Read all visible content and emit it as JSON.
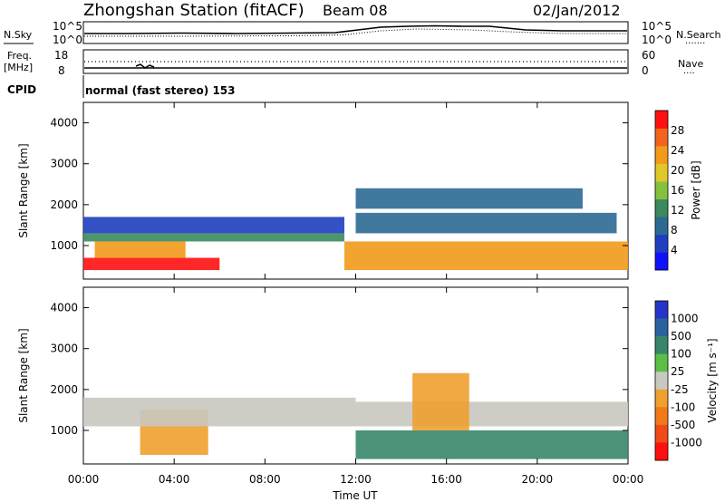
{
  "header": {
    "station": "Zhongshan Station (fitACF)",
    "beam": "Beam 08",
    "date": "02/Jan/2012"
  },
  "panels": {
    "noise": {
      "left_label": "N.Sky",
      "left_top": "10^5",
      "left_bottom": "10^0",
      "right_top": "10^5",
      "right_bottom": "10^0",
      "right_label": "N.Search",
      "right_dots": "·······"
    },
    "freq": {
      "label_line1": "Freq.",
      "label_line2": "[MHz]",
      "left_top": "18",
      "left_bottom": "8",
      "right_top": "60",
      "right_bottom": "0",
      "right_label": "Nave",
      "right_dots": "····"
    },
    "cpid": {
      "label": "CPID",
      "text": "normal (fast stereo) 153"
    }
  },
  "chart_data": [
    {
      "type": "heatmap",
      "panel": "power",
      "ylabel": "Slant Range [km]",
      "yticks": [
        "1000",
        "2000",
        "3000",
        "4000"
      ],
      "ylim": [
        180,
        4500
      ],
      "xlim": [
        0,
        24
      ],
      "colorbar": {
        "label": "Power [dB]",
        "ticks": [
          "4",
          "8",
          "12",
          "16",
          "20",
          "24",
          "28"
        ],
        "range": [
          0,
          32
        ],
        "colors": [
          "#1010ff",
          "#1e3fc0",
          "#2c6a93",
          "#3a8a5e",
          "#86c13e",
          "#e0c82a",
          "#f29a1a",
          "#f0641c",
          "#ff1010"
        ]
      },
      "features": [
        {
          "x": [
            0.0,
            6.0
          ],
          "y": [
            400,
            700
          ],
          "value": 30
        },
        {
          "x": [
            0.5,
            4.5
          ],
          "y": [
            700,
            1100
          ],
          "value": 22
        },
        {
          "x": [
            0.0,
            11.5
          ],
          "y": [
            1100,
            1300
          ],
          "value": 14
        },
        {
          "x": [
            0.0,
            11.5
          ],
          "y": [
            1300,
            1700
          ],
          "value": 6
        },
        {
          "x": [
            11.5,
            24.0
          ],
          "y": [
            400,
            1100
          ],
          "value": 24
        },
        {
          "x": [
            12.0,
            23.5
          ],
          "y": [
            1300,
            1800
          ],
          "value": 10
        },
        {
          "x": [
            12.0,
            22.0
          ],
          "y": [
            1900,
            2400
          ],
          "value": 9
        }
      ]
    },
    {
      "type": "heatmap",
      "panel": "velocity",
      "ylabel": "Slant Range [km]",
      "yticks": [
        "1000",
        "2000",
        "3000",
        "4000"
      ],
      "ylim": [
        180,
        4500
      ],
      "xlim": [
        0,
        24
      ],
      "xticks": [
        "00:00",
        "04:00",
        "08:00",
        "12:00",
        "16:00",
        "20:00",
        "00:00"
      ],
      "xlabel": "Time UT",
      "colorbar": {
        "label": "Velocity [m s⁻¹]",
        "ticks": [
          "1000",
          "500",
          "100",
          "25",
          "-25",
          "-100",
          "-500",
          "-1000"
        ],
        "colors": [
          "#2535c8",
          "#2a62a0",
          "#37866a",
          "#5abf45",
          "#c8c8c0",
          "#f0a030",
          "#f07a18",
          "#f04a18",
          "#ff1010"
        ]
      },
      "features": [
        {
          "x": [
            2.5,
            5.5
          ],
          "y": [
            400,
            1500
          ],
          "value": -100
        },
        {
          "x": [
            0.0,
            12.0
          ],
          "y": [
            1100,
            1800
          ],
          "value": 0
        },
        {
          "x": [
            12.0,
            24.0
          ],
          "y": [
            1100,
            1700
          ],
          "value": 0
        },
        {
          "x": [
            12.0,
            24.0
          ],
          "y": [
            300,
            1000
          ],
          "value": 100
        },
        {
          "x": [
            14.5,
            17.0
          ],
          "y": [
            1000,
            2400
          ],
          "value": -100
        }
      ]
    }
  ]
}
